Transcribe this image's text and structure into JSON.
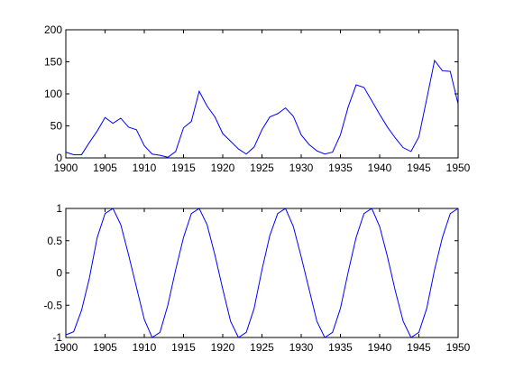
{
  "colors": {
    "line": "#0000ff",
    "axes": "#000000",
    "background": "#ffffff"
  },
  "chart_data": [
    {
      "type": "line",
      "title": "",
      "xlabel": "",
      "ylabel": "",
      "grid": false,
      "xlim": [
        1900,
        1950
      ],
      "ylim": [
        0,
        200
      ],
      "xticks": [
        1900,
        1905,
        1910,
        1915,
        1920,
        1925,
        1930,
        1935,
        1940,
        1945,
        1950
      ],
      "yticks": [
        0,
        50,
        100,
        150,
        200
      ],
      "series": [
        {
          "x": [
            1900,
            1901,
            1902,
            1903,
            1904,
            1905,
            1906,
            1907,
            1908,
            1909,
            1910,
            1911,
            1912,
            1913,
            1914,
            1915,
            1916,
            1917,
            1918,
            1919,
            1920,
            1921,
            1922,
            1923,
            1924,
            1925,
            1926,
            1927,
            1928,
            1929,
            1930,
            1931,
            1932,
            1933,
            1934,
            1935,
            1936,
            1937,
            1938,
            1939,
            1940,
            1941,
            1942,
            1943,
            1944,
            1945,
            1946,
            1947,
            1948,
            1949,
            1950
          ],
          "y": [
            9,
            5,
            5,
            24,
            42,
            63,
            54,
            62,
            48,
            44,
            19,
            6,
            4,
            1,
            10,
            47,
            57,
            104,
            81,
            64,
            38,
            26,
            14,
            6,
            17,
            44,
            64,
            69,
            78,
            65,
            36,
            21,
            11,
            6,
            9,
            36,
            80,
            114,
            110,
            89,
            68,
            48,
            31,
            16,
            10,
            33,
            92,
            152,
            136,
            135,
            84
          ]
        }
      ]
    },
    {
      "type": "line",
      "title": "",
      "xlabel": "",
      "ylabel": "",
      "grid": false,
      "xlim": [
        1900,
        1950
      ],
      "ylim": [
        -1,
        1
      ],
      "xticks": [
        1900,
        1905,
        1910,
        1915,
        1920,
        1925,
        1930,
        1935,
        1940,
        1945,
        1950
      ],
      "yticks": [
        -1,
        -0.5,
        0,
        0.5,
        1
      ],
      "series": [
        {
          "x": [
            1900,
            1901,
            1902,
            1903,
            1904,
            1905,
            1906,
            1907,
            1908,
            1909,
            1910,
            1911,
            1912,
            1913,
            1914,
            1915,
            1916,
            1917,
            1918,
            1919,
            1920,
            1921,
            1922,
            1923,
            1924,
            1925,
            1926,
            1927,
            1928,
            1929,
            1930,
            1931,
            1932,
            1933,
            1934,
            1935,
            1936,
            1937,
            1938,
            1939,
            1940,
            1941,
            1942,
            1943,
            1944,
            1945,
            1946,
            1947,
            1948,
            1949,
            1950
          ],
          "y": [
            -0.96,
            -0.91,
            -0.58,
            -0.08,
            0.55,
            0.92,
            1.0,
            0.75,
            0.28,
            -0.22,
            -0.72,
            -1.0,
            -0.92,
            -0.5,
            0.05,
            0.55,
            0.92,
            1.0,
            0.75,
            0.28,
            -0.25,
            -0.75,
            -1.0,
            -0.92,
            -0.55,
            0.05,
            0.58,
            0.92,
            1.0,
            0.72,
            0.25,
            -0.25,
            -0.75,
            -1.0,
            -0.92,
            -0.55,
            0.02,
            0.55,
            0.92,
            1.0,
            0.72,
            0.25,
            -0.28,
            -0.75,
            -1.0,
            -0.92,
            -0.55,
            0.05,
            0.55,
            0.92,
            1.0
          ]
        }
      ]
    }
  ]
}
